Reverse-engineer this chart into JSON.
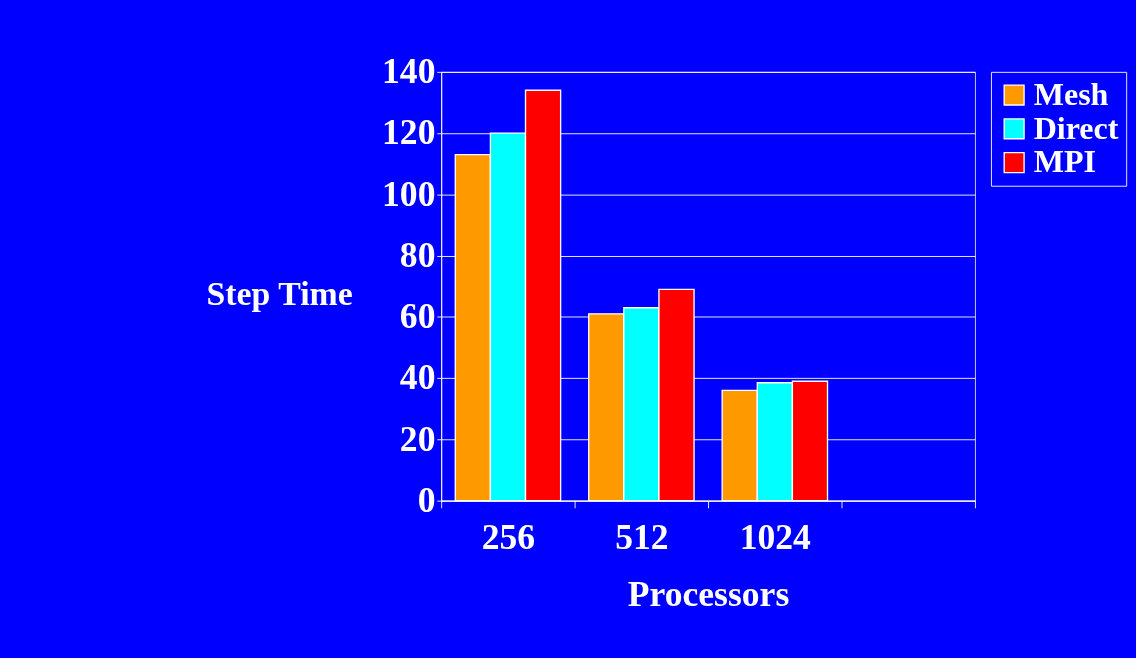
{
  "chart_data": {
    "type": "bar",
    "xlabel": "Processors",
    "ylabel": "Step Time",
    "categories": [
      "256",
      "512",
      "1024",
      null
    ],
    "series": [
      {
        "name": "Mesh",
        "color": "#ff9900",
        "values": [
          113,
          61,
          36,
          null
        ]
      },
      {
        "name": "Direct",
        "color": "#00ffff",
        "values": [
          120,
          63,
          38.5,
          null
        ]
      },
      {
        "name": "MPI",
        "color": "#ff0000",
        "values": [
          134,
          69,
          39,
          null
        ]
      }
    ],
    "ylim": [
      0,
      140
    ],
    "yticks": [
      0,
      20,
      40,
      60,
      80,
      100,
      120,
      140
    ],
    "grid": "y",
    "legend": "right"
  }
}
